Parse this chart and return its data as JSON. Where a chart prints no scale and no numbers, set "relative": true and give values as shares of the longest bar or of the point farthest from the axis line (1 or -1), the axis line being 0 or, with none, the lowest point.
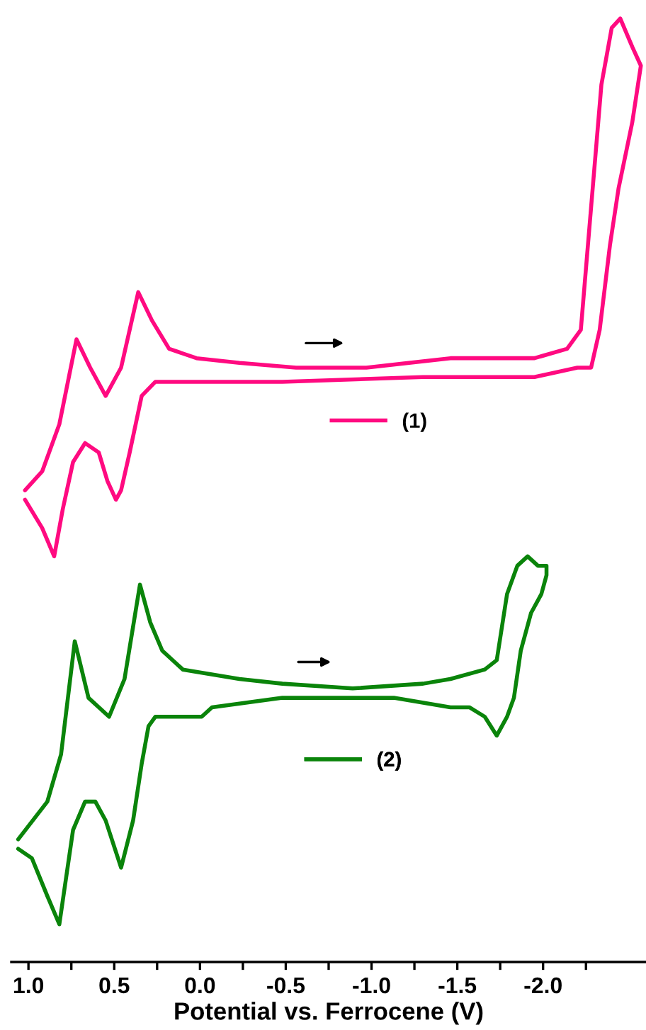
{
  "chart_data": {
    "type": "line",
    "relative": true,
    "xlim": [
      1.1,
      -2.6
    ],
    "legend": "center",
    "grid": false,
    "xticks": [
      {
        "value": 1.0,
        "label": "1.0"
      },
      {
        "value": 0.75,
        "label": null
      },
      0.5,
      {
        "value": 0.25,
        "label": null
      },
      {
        "value": 0.0,
        "label": "0.0"
      },
      {
        "value": -0.25,
        "label": null
      },
      -0.5,
      {
        "value": -0.75,
        "label": null
      },
      {
        "value": -1.0,
        "label": "-1.0"
      },
      {
        "value": -1.25,
        "label": null
      },
      -1.5,
      {
        "value": -1.75,
        "label": null
      },
      {
        "value": -2.0,
        "label": "-2.0"
      },
      {
        "value": -2.25,
        "label": null
      }
    ],
    "xlabel": "Potential vs. Ferrocene (V)",
    "series": [
      {
        "name": "(1)",
        "color": "#ff0a80",
        "x": [
          1.02,
          0.92,
          0.82,
          0.72,
          0.64,
          0.55,
          0.46,
          0.36,
          0.28,
          0.18,
          0.02,
          -0.23,
          -0.56,
          -0.97,
          -1.46,
          -1.95,
          -2.14,
          -2.22,
          -2.28,
          -2.34,
          -2.4,
          -2.45,
          -2.52,
          -2.57,
          -2.52,
          -2.44,
          -2.39,
          -2.33,
          -2.28,
          -2.2,
          -1.95,
          -1.3,
          -0.48,
          0.1,
          0.26,
          0.34,
          0.41,
          0.46,
          0.49,
          0.54,
          0.59,
          0.67,
          0.74,
          0.8,
          0.85,
          0.92,
          1.02
        ],
        "values": [
          0.5,
          0.52,
          0.57,
          0.66,
          0.63,
          0.6,
          0.63,
          0.71,
          0.68,
          0.65,
          0.64,
          0.635,
          0.63,
          0.63,
          0.64,
          0.64,
          0.65,
          0.67,
          0.8,
          0.93,
          0.99,
          1.0,
          0.97,
          0.95,
          0.89,
          0.82,
          0.76,
          0.67,
          0.63,
          0.63,
          0.62,
          0.62,
          0.615,
          0.615,
          0.615,
          0.6,
          0.54,
          0.5,
          0.49,
          0.51,
          0.54,
          0.55,
          0.53,
          0.48,
          0.43,
          0.46,
          0.49
        ]
      },
      {
        "name": "(2)",
        "color": "#0a840a",
        "x": [
          1.06,
          0.89,
          0.81,
          0.73,
          0.65,
          0.53,
          0.44,
          0.35,
          0.29,
          0.22,
          0.1,
          -0.23,
          -0.48,
          -0.89,
          -1.3,
          -1.46,
          -1.66,
          -1.73,
          -1.79,
          -1.85,
          -1.91,
          -1.97,
          -2.02,
          -2.02,
          -1.99,
          -1.93,
          -1.87,
          -1.83,
          -1.79,
          -1.73,
          -1.66,
          -1.57,
          -1.46,
          -1.13,
          -0.48,
          -0.07,
          -0.01,
          0.1,
          0.26,
          0.3,
          0.34,
          0.39,
          0.46,
          0.55,
          0.61,
          0.67,
          0.74,
          0.78,
          0.82,
          0.89,
          0.98,
          1.06
        ],
        "values": [
          0.13,
          0.17,
          0.22,
          0.34,
          0.28,
          0.26,
          0.3,
          0.4,
          0.36,
          0.33,
          0.31,
          0.3,
          0.295,
          0.29,
          0.295,
          0.3,
          0.31,
          0.32,
          0.39,
          0.42,
          0.43,
          0.42,
          0.42,
          0.41,
          0.39,
          0.37,
          0.33,
          0.28,
          0.26,
          0.24,
          0.26,
          0.27,
          0.27,
          0.28,
          0.28,
          0.27,
          0.26,
          0.26,
          0.26,
          0.25,
          0.21,
          0.15,
          0.1,
          0.15,
          0.17,
          0.17,
          0.14,
          0.09,
          0.04,
          0.07,
          0.11,
          0.12
        ]
      }
    ]
  }
}
